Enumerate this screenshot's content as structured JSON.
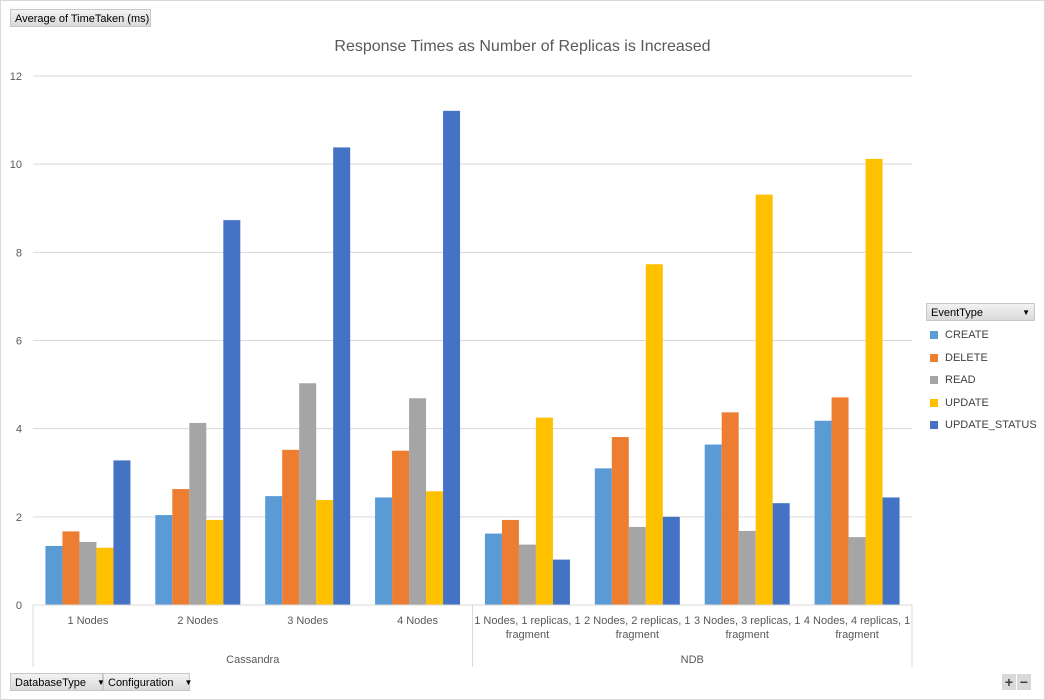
{
  "pivot": {
    "value_field": "Average of TimeTaken (ms)",
    "row_fields": [
      "DatabaseType",
      "Configuration"
    ],
    "legend_field": "EventType"
  },
  "zoom": {
    "plus": "+",
    "minus": "−"
  },
  "chart_data": {
    "type": "bar",
    "title": "Response Times as Number of Replicas is Increased",
    "xlabel": "",
    "ylabel": "",
    "ylim": [
      0,
      12
    ],
    "yticks": [
      0,
      2,
      4,
      6,
      8,
      10,
      12
    ],
    "grid": true,
    "legend_position": "right",
    "groups": [
      {
        "name": "Cassandra",
        "categories": [
          "1 Nodes",
          "2 Nodes",
          "3 Nodes",
          "4 Nodes"
        ]
      },
      {
        "name": "NDB",
        "categories": [
          "1 Nodes, 1 replicas, 1 fragment",
          "2 Nodes, 2 replicas, 1 fragment",
          "3 Nodes, 3 replicas, 1 fragment",
          "4 Nodes, 4 replicas, 1 fragment"
        ]
      }
    ],
    "series": [
      {
        "name": "CREATE",
        "color": "#5b9bd5",
        "values": [
          1.34,
          2.04,
          2.47,
          2.44,
          1.62,
          3.1,
          3.64,
          4.18
        ]
      },
      {
        "name": "DELETE",
        "color": "#ed7d31",
        "values": [
          1.67,
          2.63,
          3.52,
          3.5,
          1.93,
          3.81,
          4.37,
          4.71
        ]
      },
      {
        "name": "READ",
        "color": "#a5a5a5",
        "values": [
          1.43,
          4.13,
          5.03,
          4.69,
          1.37,
          1.77,
          1.68,
          1.54
        ]
      },
      {
        "name": "UPDATE",
        "color": "#ffc000",
        "values": [
          1.3,
          1.93,
          2.38,
          2.58,
          4.25,
          7.73,
          9.31,
          10.12
        ]
      },
      {
        "name": "UPDATE_STATUS",
        "color": "#4472c4",
        "values": [
          3.28,
          8.73,
          10.38,
          11.21,
          1.03,
          2.0,
          2.31,
          2.44
        ]
      }
    ]
  }
}
